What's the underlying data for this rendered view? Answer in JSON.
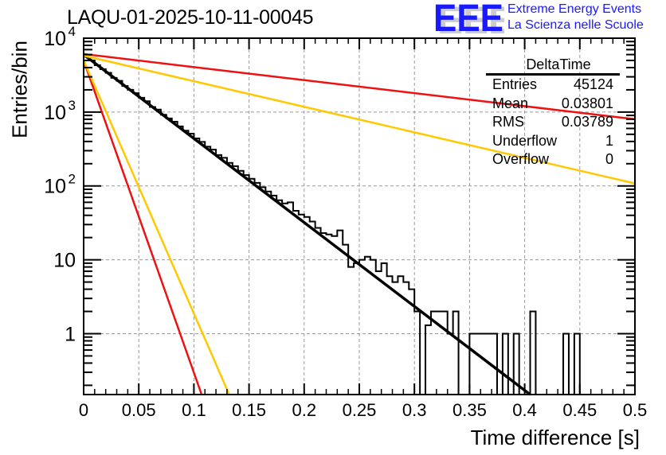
{
  "header": {
    "title": "LAQU-01-2025-10-11-00045",
    "logo_letters": "EEE",
    "logo_line1": "Extreme Energy Events",
    "logo_line2": "La Scienza nelle Scuole"
  },
  "stats_box": {
    "name": "DeltaTime",
    "rows": [
      {
        "label": "Entries",
        "value": "45124"
      },
      {
        "label": "Mean",
        "value": "0.03801"
      },
      {
        "label": "RMS",
        "value": "0.03789"
      },
      {
        "label": "Underflow",
        "value": "1"
      },
      {
        "label": "Overflow",
        "value": "0"
      }
    ]
  },
  "colors": {
    "histogram": "#000000",
    "fit": "#000000",
    "red_lines": "#ee1111",
    "orange_lines": "#ffc800",
    "logo": "#1a1aff",
    "grid": "#999999"
  },
  "chart_data": {
    "type": "histogram",
    "title": "LAQU-01-2025-10-11-00045",
    "xlabel": "Time difference [s]",
    "ylabel": "Entries/bin",
    "xlim": [
      0,
      0.5
    ],
    "ylim": [
      0.15,
      10000
    ],
    "yscale": "log",
    "grid": true,
    "x_ticks": [
      "0",
      "0.05",
      "0.1",
      "0.15",
      "0.2",
      "0.25",
      "0.3",
      "0.35",
      "0.4",
      "0.45",
      "0.5"
    ],
    "y_ticks": [
      {
        "value": 1,
        "label": "1"
      },
      {
        "value": 10,
        "label": "10"
      },
      {
        "value": 100,
        "label": "10^2"
      },
      {
        "value": 1000,
        "label": "10^3"
      },
      {
        "value": 10000,
        "label": "10^4"
      }
    ],
    "bin_width": 0.005,
    "bin_values": [
      5700,
      4900,
      4300,
      3800,
      3350,
      2950,
      2600,
      2280,
      2000,
      1780,
      1560,
      1380,
      1200,
      1060,
      930,
      820,
      720,
      640,
      560,
      500,
      440,
      385,
      340,
      300,
      265,
      235,
      205,
      180,
      158,
      140,
      123,
      108,
      95,
      84,
      74,
      65,
      57,
      60,
      45,
      39,
      35,
      31,
      27,
      24,
      21,
      18,
      16,
      14,
      12.5,
      11,
      9.7,
      8.5,
      7.5,
      6.5,
      5.7,
      5,
      4.4,
      3.8,
      3.3,
      2.9,
      2.5,
      2.2,
      1.9,
      1.65,
      1.45,
      1.25,
      1.1,
      0.95,
      0.83,
      0.72
    ],
    "hist_bins": [
      {
        "x0": 0.0,
        "v": 5600
      },
      {
        "x0": 0.005,
        "v": 5000
      },
      {
        "x0": 0.01,
        "v": 4300
      },
      {
        "x0": 0.015,
        "v": 3800
      },
      {
        "x0": 0.02,
        "v": 3400
      },
      {
        "x0": 0.025,
        "v": 2900
      },
      {
        "x0": 0.03,
        "v": 2650
      },
      {
        "x0": 0.035,
        "v": 2250
      },
      {
        "x0": 0.04,
        "v": 2000
      },
      {
        "x0": 0.045,
        "v": 1800
      },
      {
        "x0": 0.05,
        "v": 1560
      },
      {
        "x0": 0.055,
        "v": 1400
      },
      {
        "x0": 0.06,
        "v": 1170
      },
      {
        "x0": 0.065,
        "v": 1080
      },
      {
        "x0": 0.07,
        "v": 920
      },
      {
        "x0": 0.075,
        "v": 820
      },
      {
        "x0": 0.08,
        "v": 740
      },
      {
        "x0": 0.085,
        "v": 640
      },
      {
        "x0": 0.09,
        "v": 560
      },
      {
        "x0": 0.095,
        "v": 510
      },
      {
        "x0": 0.1,
        "v": 440
      },
      {
        "x0": 0.105,
        "v": 395
      },
      {
        "x0": 0.11,
        "v": 340
      },
      {
        "x0": 0.115,
        "v": 310
      },
      {
        "x0": 0.12,
        "v": 262
      },
      {
        "x0": 0.125,
        "v": 240
      },
      {
        "x0": 0.13,
        "v": 205
      },
      {
        "x0": 0.135,
        "v": 185
      },
      {
        "x0": 0.14,
        "v": 160
      },
      {
        "x0": 0.145,
        "v": 140
      },
      {
        "x0": 0.15,
        "v": 125
      },
      {
        "x0": 0.155,
        "v": 110
      },
      {
        "x0": 0.16,
        "v": 96
      },
      {
        "x0": 0.165,
        "v": 84
      },
      {
        "x0": 0.17,
        "v": 74
      },
      {
        "x0": 0.175,
        "v": 64
      },
      {
        "x0": 0.18,
        "v": 58
      },
      {
        "x0": 0.185,
        "v": 60
      },
      {
        "x0": 0.19,
        "v": 46
      },
      {
        "x0": 0.195,
        "v": 41
      },
      {
        "x0": 0.2,
        "v": 38
      },
      {
        "x0": 0.205,
        "v": 33
      },
      {
        "x0": 0.21,
        "v": 27
      },
      {
        "x0": 0.215,
        "v": 23
      },
      {
        "x0": 0.22,
        "v": 22
      },
      {
        "x0": 0.225,
        "v": 21
      },
      {
        "x0": 0.23,
        "v": 25
      },
      {
        "x0": 0.235,
        "v": 16
      },
      {
        "x0": 0.24,
        "v": 8
      },
      {
        "x0": 0.245,
        "v": 9
      },
      {
        "x0": 0.25,
        "v": 10
      },
      {
        "x0": 0.255,
        "v": 11
      },
      {
        "x0": 0.26,
        "v": 10
      },
      {
        "x0": 0.265,
        "v": 7
      },
      {
        "x0": 0.27,
        "v": 9
      },
      {
        "x0": 0.275,
        "v": 6
      },
      {
        "x0": 0.28,
        "v": 5
      },
      {
        "x0": 0.285,
        "v": 6
      },
      {
        "x0": 0.29,
        "v": 5
      },
      {
        "x0": 0.295,
        "v": 4
      },
      {
        "x0": 0.3,
        "v": 2
      },
      {
        "x0": 0.305,
        "v": 0
      },
      {
        "x0": 0.31,
        "v": 1.3
      },
      {
        "x0": 0.315,
        "v": 2
      },
      {
        "x0": 0.32,
        "v": 2
      },
      {
        "x0": 0.325,
        "v": 2
      },
      {
        "x0": 0.33,
        "v": 1
      },
      {
        "x0": 0.335,
        "v": 2
      },
      {
        "x0": 0.34,
        "v": 0
      },
      {
        "x0": 0.345,
        "v": 0
      },
      {
        "x0": 0.35,
        "v": 1
      },
      {
        "x0": 0.355,
        "v": 1
      },
      {
        "x0": 0.36,
        "v": 1
      },
      {
        "x0": 0.365,
        "v": 1
      },
      {
        "x0": 0.37,
        "v": 1
      },
      {
        "x0": 0.375,
        "v": 0
      },
      {
        "x0": 0.38,
        "v": 1
      },
      {
        "x0": 0.385,
        "v": 0
      },
      {
        "x0": 0.39,
        "v": 1
      },
      {
        "x0": 0.395,
        "v": 0
      },
      {
        "x0": 0.4,
        "v": 0
      },
      {
        "x0": 0.405,
        "v": 2
      },
      {
        "x0": 0.41,
        "v": 0
      },
      {
        "x0": 0.415,
        "v": 0
      },
      {
        "x0": 0.42,
        "v": 0
      },
      {
        "x0": 0.425,
        "v": 0
      },
      {
        "x0": 0.43,
        "v": 0
      },
      {
        "x0": 0.435,
        "v": 1
      },
      {
        "x0": 0.44,
        "v": 0
      },
      {
        "x0": 0.445,
        "v": 1
      },
      {
        "x0": 0.45,
        "v": 0
      },
      {
        "x0": 0.455,
        "v": 0
      },
      {
        "x0": 0.46,
        "v": 0
      },
      {
        "x0": 0.465,
        "v": 0
      },
      {
        "x0": 0.47,
        "v": 0
      },
      {
        "x0": 0.475,
        "v": 0
      },
      {
        "x0": 0.48,
        "v": 0
      },
      {
        "x0": 0.485,
        "v": 0
      },
      {
        "x0": 0.49,
        "v": 0
      },
      {
        "x0": 0.495,
        "v": 0
      }
    ],
    "lines": [
      {
        "name": "fit",
        "color": "#000000",
        "points": [
          [
            0,
            6000
          ],
          [
            0.405,
            0.15
          ]
        ]
      },
      {
        "name": "red-steep",
        "color": "#ee1111",
        "points": [
          [
            0,
            5000
          ],
          [
            0.107,
            0.15
          ]
        ]
      },
      {
        "name": "orange-steep",
        "color": "#ffc800",
        "points": [
          [
            0,
            5000
          ],
          [
            0.132,
            0.15
          ]
        ]
      },
      {
        "name": "red-shallow",
        "color": "#ee1111",
        "points": [
          [
            0,
            6100
          ],
          [
            0.5,
            800
          ]
        ]
      },
      {
        "name": "orange-shallow",
        "color": "#ffc800",
        "points": [
          [
            0,
            5800
          ],
          [
            0.5,
            108
          ]
        ]
      }
    ],
    "legend": "top-right"
  }
}
